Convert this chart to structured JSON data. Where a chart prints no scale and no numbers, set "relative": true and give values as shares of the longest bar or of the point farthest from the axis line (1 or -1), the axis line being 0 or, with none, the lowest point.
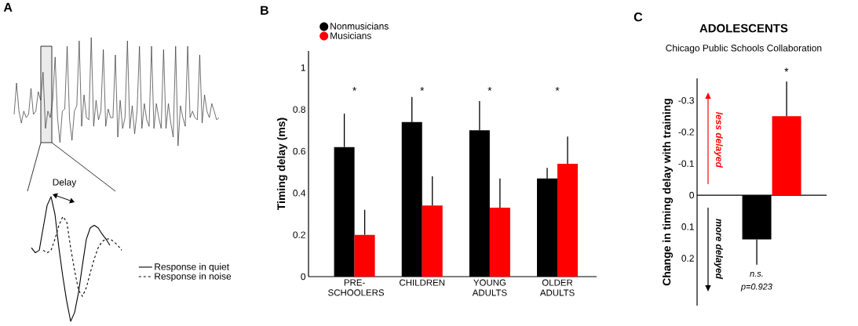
{
  "chart_data": [
    {
      "type": "line",
      "relative": true,
      "annotations": [
        "A"
      ],
      "categories": [
        null,
        null,
        null,
        null,
        null,
        null,
        null,
        null,
        null,
        null,
        null,
        null,
        null,
        null,
        null,
        null,
        null,
        null,
        null,
        null,
        null,
        null,
        null,
        null,
        null,
        null,
        null,
        null,
        null,
        null,
        null,
        null,
        null,
        null,
        null,
        null,
        null,
        null,
        null,
        null,
        null,
        null,
        null,
        null,
        null,
        null,
        null,
        null,
        null,
        null,
        null,
        null,
        null,
        null,
        null,
        null,
        null,
        null,
        null,
        null,
        null,
        null,
        null,
        null,
        null,
        null,
        null,
        null,
        null,
        null,
        null,
        null,
        null,
        null,
        null,
        null,
        null,
        null,
        null,
        null,
        null,
        null,
        null,
        null,
        null,
        null
      ],
      "series": [
        {
          "color": "#333333",
          "values": [
            0.29,
            0.58,
            0.32,
            0.21,
            0.32,
            0.26,
            0.29,
            0.53,
            0.29,
            0.32,
            0.5,
            0.42,
            0.68,
            0.16,
            0.32,
            0.26,
            0.42,
            0.82,
            0.26,
            0.03,
            0.32,
            0.34,
            0.92,
            0.24,
            0.05,
            0.32,
            0.37,
            0.97,
            0.18,
            0.47,
            0.26,
            0.24,
            1.0,
            0.18,
            0.42,
            0.24,
            0.32,
            0.89,
            0.18,
            0.34,
            0.26,
            0.26,
            0.84,
            0.08,
            0.42,
            0.16,
            0.26,
            0.97,
            0.16,
            0.37,
            0.11,
            0.32,
            0.92,
            0.16,
            0.39,
            0.24,
            0.18,
            0.92,
            0.16,
            0.39,
            0.26,
            0.16,
            0.89,
            0.16,
            0.39,
            0.21,
            0.08,
            0.92,
            0.0,
            0.37,
            0.26,
            0.18,
            0.92,
            0.26,
            0.32,
            0.26,
            0.24,
            0.84,
            0.21,
            0.47,
            0.32,
            0.26,
            0.39,
            0.32,
            0.24,
            0.26
          ]
        }
      ]
    },
    {
      "type": "line",
      "relative": true,
      "legend": "bottom right",
      "annotations": [
        "Delay"
      ],
      "categories": [
        null,
        null,
        null,
        null,
        null,
        null,
        null,
        null,
        null,
        null,
        null,
        null,
        null,
        null,
        null,
        null,
        null,
        null,
        null,
        null,
        null,
        null,
        null,
        null
      ],
      "series": [
        {
          "name": "Response in quiet",
          "color": "#000000",
          "line_style": "solid",
          "values": [
            0.59,
            0.55,
            0.57,
            0.75,
            0.93,
            1.0,
            0.86,
            0.59,
            0.36,
            0.16,
            0.0,
            0.07,
            0.23,
            0.45,
            0.66,
            0.75,
            0.77,
            0.75,
            0.7,
            0.66,
            0.61,
            null,
            null,
            null
          ]
        },
        {
          "name": "Response in noise",
          "color": "#000000",
          "line_style": "dashed",
          "values": [
            null,
            null,
            null,
            0.57,
            0.55,
            0.57,
            0.66,
            0.77,
            0.84,
            0.8,
            0.59,
            0.41,
            0.25,
            0.2,
            0.27,
            0.39,
            0.5,
            0.59,
            0.64,
            0.66,
            0.66,
            0.64,
            0.61,
            0.57
          ]
        }
      ]
    },
    {
      "type": "bar",
      "ylabel": "Timing delay (ms)",
      "categories": [
        "PRE-SCHOOLERS",
        "CHILDREN",
        "YOUNG ADULTS",
        "OLDER ADULTS"
      ],
      "ylim": [
        0,
        1.08
      ],
      "yticks": [
        0,
        0.2,
        0.4,
        0.6,
        0.8,
        1
      ],
      "legend": "top left",
      "annotations": [
        "B",
        "*",
        "*",
        "*",
        "*"
      ],
      "series": [
        {
          "name": "Nonmusicians",
          "color": "#000000",
          "values": [
            0.62,
            0.74,
            0.7,
            0.47
          ],
          "errors": [
            [
              0.62,
              0.78
            ],
            [
              0.74,
              0.86
            ],
            [
              0.7,
              0.84
            ],
            [
              0.47,
              0.52
            ]
          ]
        },
        {
          "name": "Musicians",
          "color": "#ff0000",
          "values": [
            0.2,
            0.34,
            0.33,
            0.54
          ],
          "errors": [
            [
              0.2,
              0.32
            ],
            [
              0.34,
              0.48
            ],
            [
              0.33,
              0.47
            ],
            [
              0.54,
              0.67
            ]
          ]
        }
      ]
    },
    {
      "type": "bar",
      "title": "ADOLESCENTS",
      "subtitle": "Chicago Public Schools Collaboration",
      "ylabel": "Change in timing delay with training",
      "categories": [
        null,
        null
      ],
      "values": [
        0.14,
        -0.25
      ],
      "colors": [
        "#000000",
        "#ff0000"
      ],
      "errors": [
        [
          0.14,
          0.22
        ],
        [
          -0.36,
          -0.25
        ]
      ],
      "ylim": [
        0.35,
        -0.37
      ],
      "yticks": [
        -0.3,
        -0.2,
        -0.1,
        0,
        0.1,
        0.2
      ],
      "tick_labels": "y",
      "annotations": [
        "C",
        "*",
        "n.s.",
        "p=0.923",
        "less delayed",
        "more delayed"
      ]
    }
  ]
}
